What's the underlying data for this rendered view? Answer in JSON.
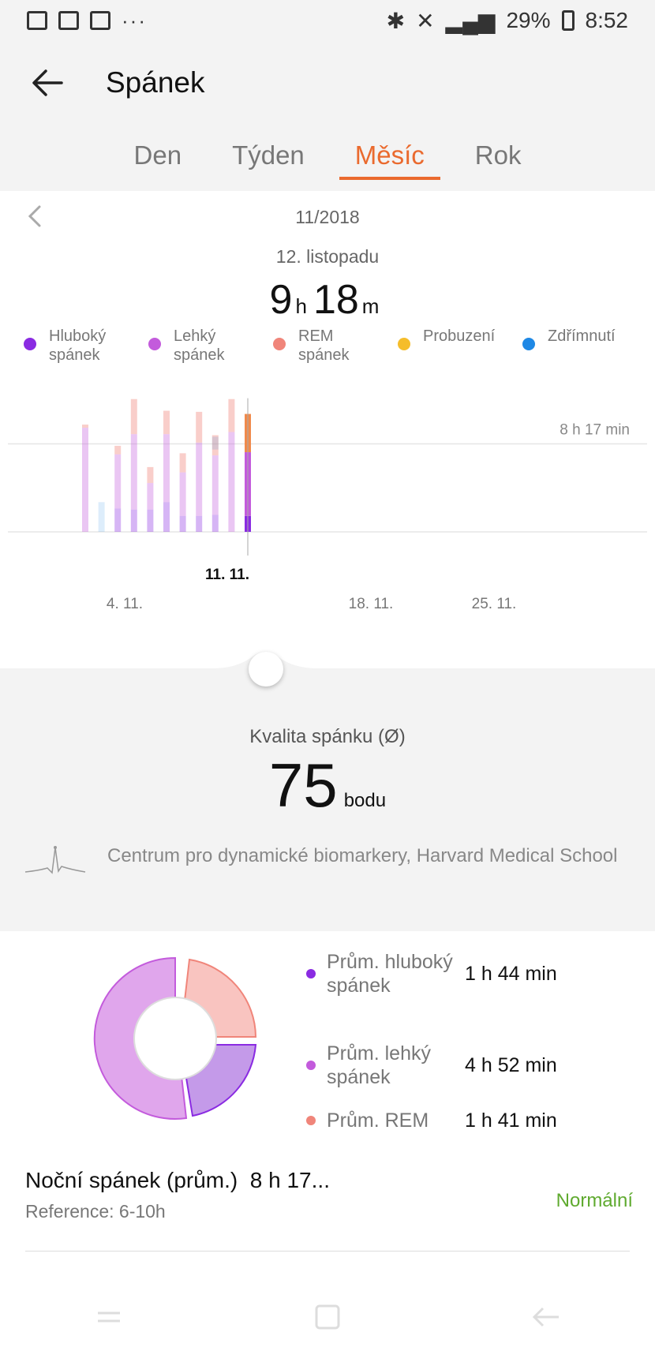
{
  "status_bar": {
    "battery": "29%",
    "time": "8:52"
  },
  "header": {
    "title": "Spánek"
  },
  "tabs": [
    {
      "label": "Den",
      "active": false
    },
    {
      "label": "Týden",
      "active": false
    },
    {
      "label": "Měsíc",
      "active": true
    },
    {
      "label": "Rok",
      "active": false
    }
  ],
  "colors": {
    "accent": "#ea6a2e",
    "deep": "#8a2be2",
    "light": "#c35bdc",
    "rem": "#f0857a",
    "awake": "#f5bd2b",
    "nap": "#1e88e5",
    "normal": "#5faa2f"
  },
  "period": {
    "month": "11/2018",
    "date": "12. listopadu"
  },
  "duration": {
    "hours": "9",
    "h_unit": "h",
    "minutes": "18",
    "m_unit": "m"
  },
  "legend": [
    {
      "label": "Hluboký spánek",
      "color": "#8a2be2"
    },
    {
      "label": "Lehký spánek",
      "color": "#c35bdc"
    },
    {
      "label": "REM spánek",
      "color": "#f0857a"
    },
    {
      "label": "Probuzení",
      "color": "#f5bd2b"
    },
    {
      "label": "Zdřímnutí",
      "color": "#1e88e5"
    }
  ],
  "chart_data": {
    "type": "bar",
    "reference_label": "8 h 17 min",
    "reference_hours": 8.28,
    "selected_label": "11. 11.",
    "x_ticks": [
      "4. 11.",
      "18. 11.",
      "25. 11."
    ],
    "days": [
      {
        "day": 1,
        "deep": 0,
        "light": 9.8,
        "rem": 0.3,
        "nap": 0
      },
      {
        "day": 2,
        "deep": 0,
        "light": 0,
        "rem": 0,
        "nap": 2.8
      },
      {
        "day": 3,
        "deep": 2.2,
        "light": 5.1,
        "rem": 0.8,
        "nap": 0
      },
      {
        "day": 4,
        "deep": 2.1,
        "light": 7.1,
        "rem": 3.3,
        "nap": 0
      },
      {
        "day": 5,
        "deep": 2.1,
        "light": 2.5,
        "rem": 1.5,
        "nap": 0
      },
      {
        "day": 6,
        "deep": 2.8,
        "light": 6.4,
        "rem": 2.2,
        "nap": 0
      },
      {
        "day": 7,
        "deep": 1.5,
        "light": 4.1,
        "rem": 1.8,
        "nap": 0
      },
      {
        "day": 8,
        "deep": 1.5,
        "light": 6.9,
        "rem": 2.9,
        "nap": 0
      },
      {
        "day": 9,
        "deep": 1.6,
        "light": 5.6,
        "rem": 1.9,
        "nap": 1.2
      },
      {
        "day": 10,
        "deep": 0,
        "light": 9.4,
        "rem": 3.1,
        "nap": 0
      },
      {
        "day": 11,
        "deep": 1.5,
        "light": 6.0,
        "rem": 3.6,
        "nap": 0
      }
    ],
    "selected_day": 11,
    "ylim": [
      0,
      13
    ]
  },
  "quality": {
    "label": "Kvalita spánku (Ø)",
    "score": "75",
    "unit": "bodu"
  },
  "source": {
    "text": "Centrum pro dynamické biomarkery, Harvard Medical School"
  },
  "averages": [
    {
      "label": "Prům. hluboký spánek",
      "value": "1 h 44 min",
      "color": "#8a2be2"
    },
    {
      "label": "Prům. lehký spánek",
      "value": "4 h 52 min",
      "color": "#c35bdc"
    },
    {
      "label": "Prům. REM",
      "value": "1 h 41 min",
      "color": "#f0857a"
    }
  ],
  "night_sleep": {
    "title": "Noční spánek (prům.)",
    "value": "8 h 17...",
    "reference": "Reference: 6-10h",
    "status": "Normální"
  }
}
